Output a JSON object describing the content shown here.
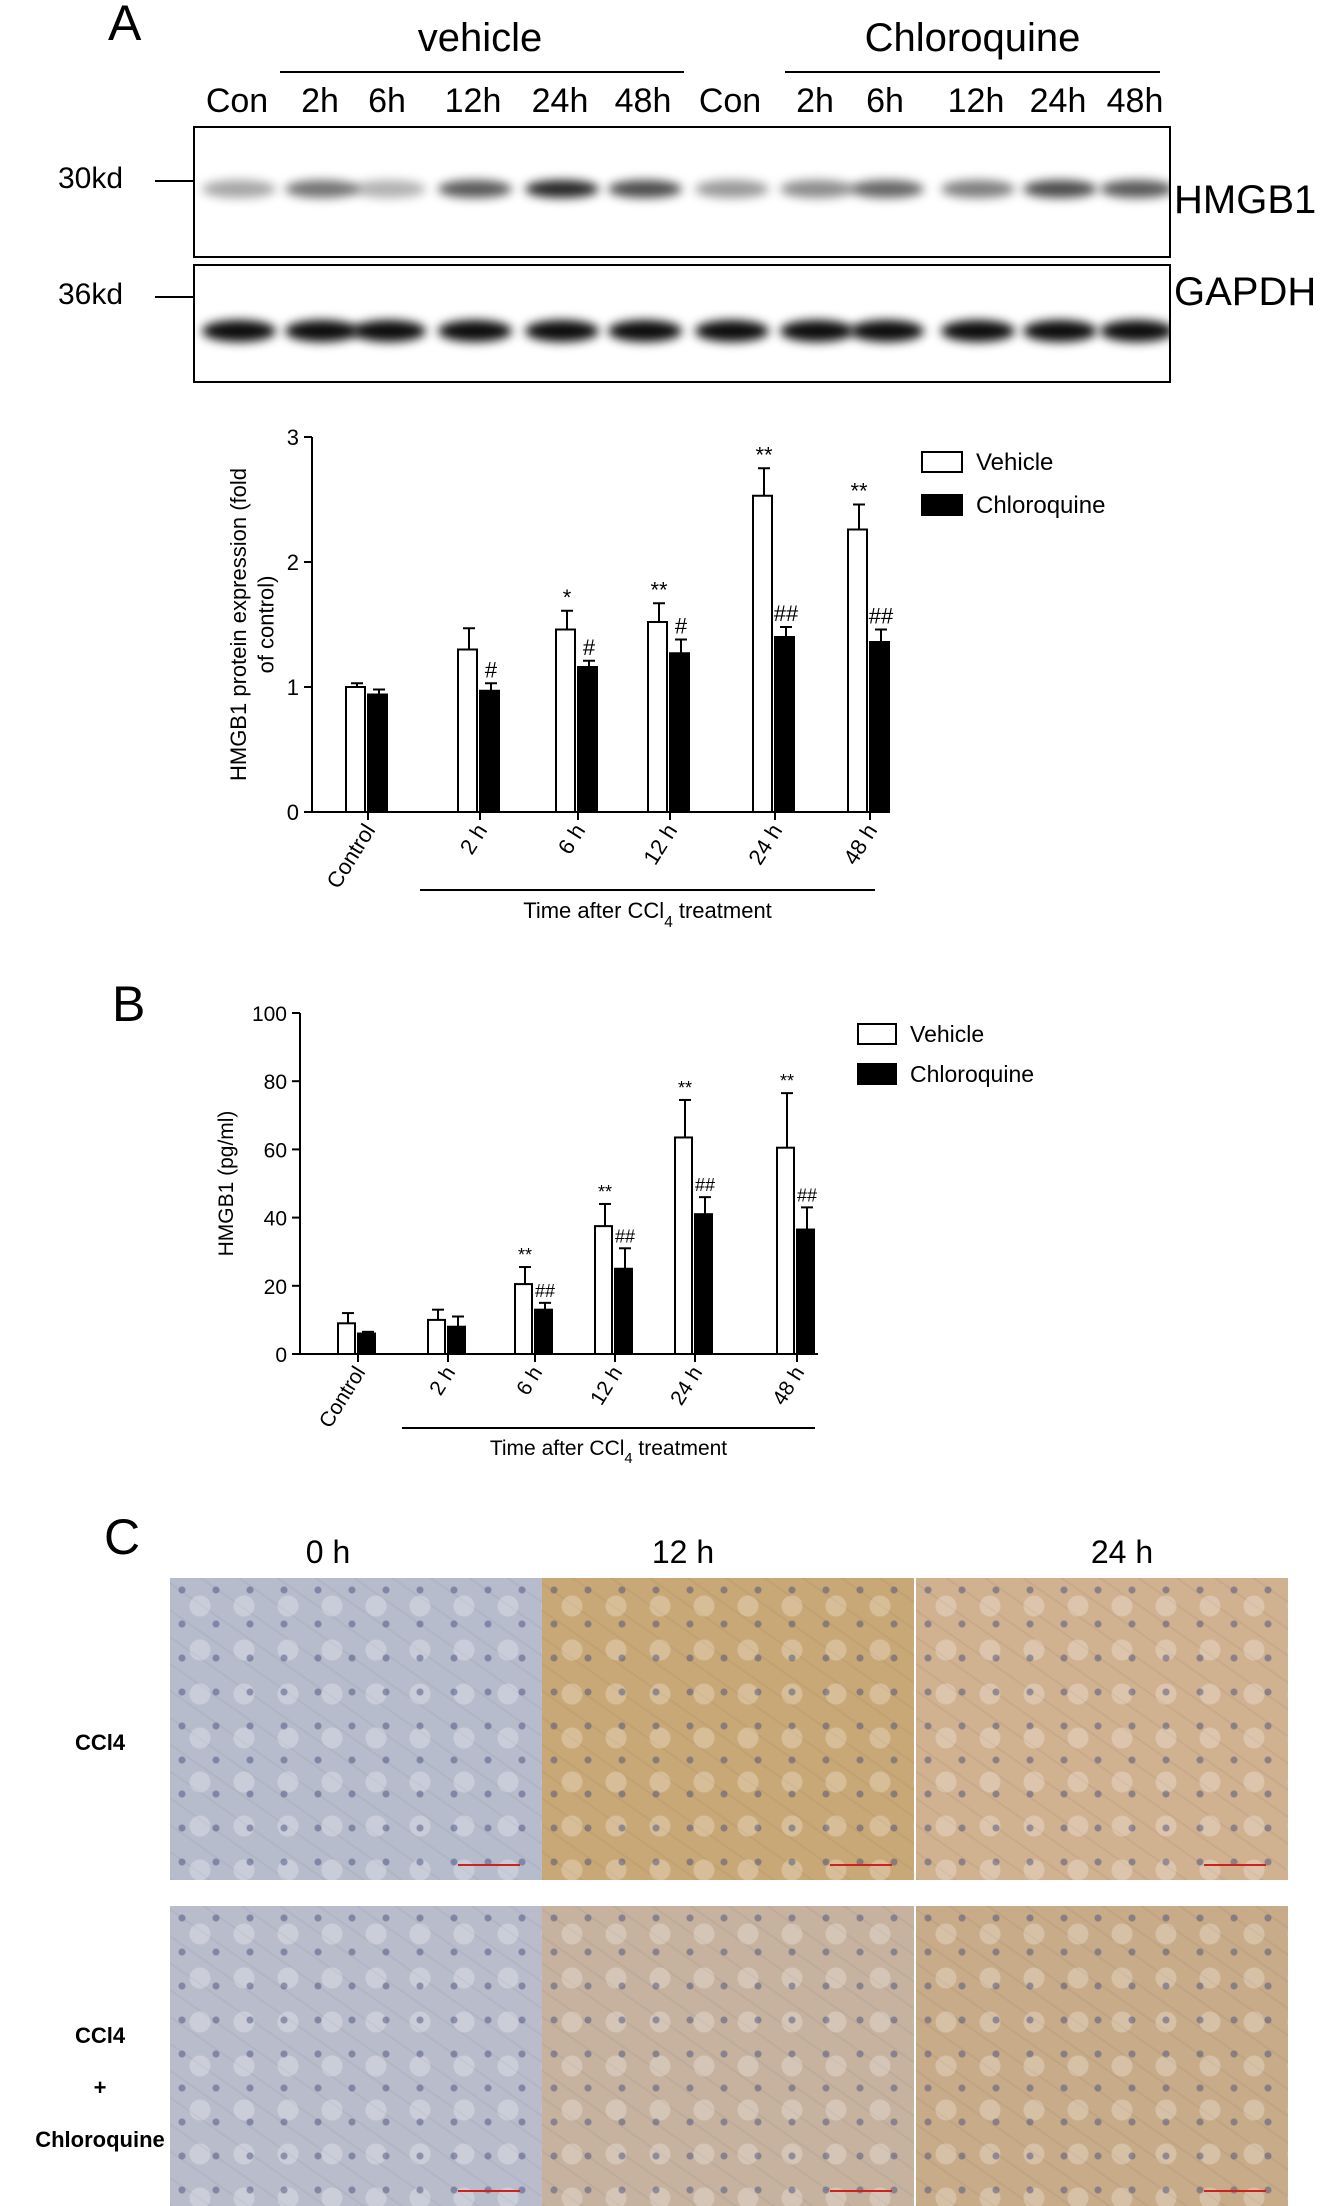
{
  "panel_a": {
    "letter": "A",
    "groups": [
      {
        "label": "vehicle"
      },
      {
        "label": "Chloroquine"
      }
    ],
    "lanes": [
      "Con",
      "2h",
      "6h",
      "12h",
      "24h",
      "48h",
      "Con",
      "2h",
      "6h",
      "12h",
      "24h",
      "48h"
    ],
    "blots": [
      {
        "protein": "HMGB1",
        "mw": "30kd",
        "band_intensity": [
          0.35,
          0.55,
          0.3,
          0.65,
          0.85,
          0.7,
          0.4,
          0.45,
          0.6,
          0.5,
          0.7,
          0.65
        ]
      },
      {
        "protein": "GAPDH",
        "mw": "36kd",
        "band_intensity": [
          0.95,
          0.95,
          0.95,
          0.95,
          0.95,
          0.95,
          0.95,
          0.95,
          0.95,
          0.95,
          0.95,
          0.95
        ]
      }
    ]
  },
  "panel_b": {
    "letter": "B"
  },
  "panel_c": {
    "letter": "C",
    "time_headers": [
      "0 h",
      "12 h",
      "24 h"
    ],
    "row_labels": [
      {
        "line1": "CCl4",
        "line2": "",
        "line3": ""
      },
      {
        "line1": "CCl4",
        "line2": "+",
        "line3": "Chloroquine"
      }
    ],
    "staining": {
      "colors": [
        "#b7bccc",
        "#c9a877",
        "#d0b190",
        "#b9bccb",
        "#c6b29f",
        "#c8ab88"
      ]
    }
  },
  "chart_data": [
    {
      "type": "bar",
      "ylabel": "HMGB1 protein expression (fold of control)",
      "xlabel": "Time after CCl4 treatment",
      "categories": [
        "Control",
        "2 h",
        "6 h",
        "12 h",
        "24 h",
        "48 h"
      ],
      "ylim": [
        0,
        3
      ],
      "yticks": [
        "0",
        "1",
        "2",
        "3"
      ],
      "series": [
        {
          "name": "Vehicle",
          "color": "#ffffff",
          "values": [
            1.0,
            1.3,
            1.46,
            1.52,
            2.53,
            2.26
          ],
          "errors": [
            0.03,
            0.17,
            0.15,
            0.15,
            0.22,
            0.2
          ],
          "sig": [
            "",
            "",
            "*",
            "**",
            "**",
            "**"
          ]
        },
        {
          "name": "Chloroquine",
          "color": "#000000",
          "values": [
            0.94,
            0.97,
            1.16,
            1.27,
            1.4,
            1.36
          ],
          "errors": [
            0.04,
            0.06,
            0.05,
            0.11,
            0.08,
            0.1
          ],
          "sig": [
            "",
            "#",
            "#",
            "#",
            "##",
            "##"
          ]
        }
      ],
      "legend_position": "top-right"
    },
    {
      "type": "bar",
      "ylabel": "HMGB1 (pg/ml)",
      "xlabel": "Time after CCl4 treatment",
      "categories": [
        "Control",
        "2 h",
        "6 h",
        "12 h",
        "24 h",
        "48 h"
      ],
      "ylim": [
        0,
        100
      ],
      "yticks": [
        "0",
        "20",
        "40",
        "60",
        "80",
        "100"
      ],
      "series": [
        {
          "name": "Vehicle",
          "color": "#ffffff",
          "values": [
            9,
            10,
            20.5,
            37.5,
            63.5,
            60.5
          ],
          "errors": [
            3,
            3,
            5,
            6.5,
            11,
            16
          ],
          "sig": [
            "",
            "",
            "**",
            "**",
            "**",
            "**"
          ]
        },
        {
          "name": "Chloroquine",
          "color": "#000000",
          "values": [
            6,
            8,
            13,
            25,
            41,
            36.5
          ],
          "errors": [
            0.5,
            3,
            2,
            6,
            5,
            6.5
          ],
          "sig": [
            "",
            "",
            "##",
            "##",
            "##",
            "##"
          ]
        }
      ],
      "legend_position": "top-right"
    }
  ]
}
